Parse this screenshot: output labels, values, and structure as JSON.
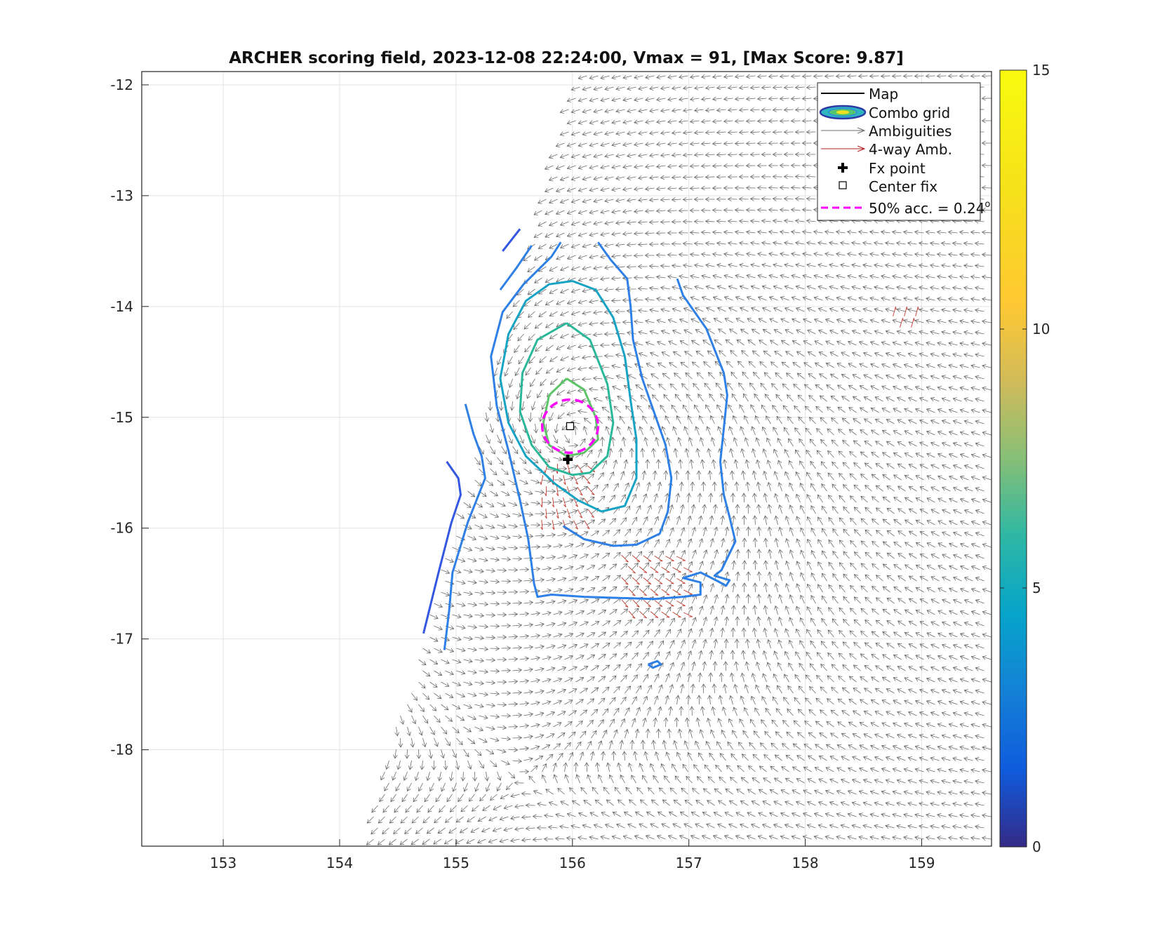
{
  "chart_data": {
    "type": "scatter",
    "title": "ARCHER scoring field, 2023-12-08 22:24:00, Vmax = 91, [Max Score: 9.87]",
    "xlim": [
      152.3,
      159.6
    ],
    "ylim": [
      -18.87,
      -11.88
    ],
    "xticks": [
      153,
      154,
      155,
      156,
      157,
      158,
      159
    ],
    "yticks": [
      -12,
      -13,
      -14,
      -15,
      -16,
      -17,
      -18
    ],
    "grid": true,
    "colorbar": {
      "min": 0,
      "max": 15,
      "ticks": [
        0,
        5,
        10,
        15
      ],
      "colormap": "parula"
    },
    "legend": {
      "placement": "top-right",
      "entries": [
        {
          "label": "Map",
          "style": "line",
          "color": "#000000"
        },
        {
          "label": "Combo grid",
          "style": "contour-ellipse"
        },
        {
          "label": "Ambiguities",
          "style": "arrow",
          "color": "#6e6e6e"
        },
        {
          "label": "4-way Amb.",
          "style": "arrow",
          "color": "#b22222"
        },
        {
          "label": "Fx point",
          "style": "plus-marker",
          "color": "#000000"
        },
        {
          "label": "Center fix",
          "style": "square-marker",
          "color": "#000000"
        },
        {
          "label": "50% acc. = 0.24",
          "superscript": "o",
          "style": "dashed",
          "color": "#ff00ff"
        }
      ]
    },
    "points": {
      "center_fix": {
        "x": 155.98,
        "y": -15.08
      },
      "fx_point": {
        "x": 155.96,
        "y": -15.38
      }
    },
    "accuracy_circle": {
      "x": 155.98,
      "y": -15.08,
      "radius_deg": 0.24,
      "color": "#ff00ff"
    },
    "swath": {
      "polygon": [
        [
          156.05,
          -11.88
        ],
        [
          159.6,
          -11.88
        ],
        [
          159.6,
          -18.87
        ],
        [
          154.2,
          -18.87
        ]
      ]
    },
    "vortex": {
      "x": 156.0,
      "y": -15.15
    },
    "contours": [
      {
        "level": 4.0,
        "color": "#3357e0",
        "segments": [
          [
            [
              155.4,
              -13.5
            ],
            [
              155.55,
              -13.3
            ]
          ],
          [
            [
              154.72,
              -16.95
            ],
            [
              154.85,
              -16.4
            ],
            [
              154.96,
              -15.95
            ],
            [
              155.04,
              -15.7
            ],
            [
              155.02,
              -15.55
            ],
            [
              154.92,
              -15.4
            ]
          ]
        ]
      },
      {
        "level": 5.0,
        "color": "#2f80e6",
        "segments": [
          [
            [
              155.65,
              -13.45
            ],
            [
              155.52,
              -13.65
            ],
            [
              155.38,
              -13.85
            ]
          ],
          [
            [
              155.08,
              -14.88
            ],
            [
              155.15,
              -15.15
            ],
            [
              155.22,
              -15.35
            ],
            [
              155.25,
              -15.55
            ],
            [
              155.1,
              -15.95
            ],
            [
              154.97,
              -16.4
            ],
            [
              154.94,
              -16.75
            ],
            [
              154.9,
              -17.1
            ]
          ],
          [
            [
              155.9,
              -13.42
            ],
            [
              155.82,
              -13.55
            ],
            [
              155.58,
              -13.8
            ],
            [
              155.4,
              -14.05
            ],
            [
              155.3,
              -14.45
            ],
            [
              155.35,
              -14.9
            ],
            [
              155.45,
              -15.3
            ],
            [
              155.55,
              -15.75
            ],
            [
              155.62,
              -16.1
            ],
            [
              155.67,
              -16.5
            ],
            [
              155.7,
              -16.62
            ],
            [
              155.82,
              -16.6
            ],
            [
              156.1,
              -16.62
            ],
            [
              156.4,
              -16.63
            ],
            [
              156.7,
              -16.64
            ],
            [
              156.95,
              -16.62
            ],
            [
              157.1,
              -16.6
            ],
            [
              157.1,
              -16.49
            ],
            [
              156.95,
              -16.45
            ],
            [
              157.1,
              -16.4
            ],
            [
              157.25,
              -16.48
            ],
            [
              157.32,
              -16.52
            ],
            [
              157.35,
              -16.47
            ],
            [
              157.22,
              -16.43
            ],
            [
              157.28,
              -16.38
            ],
            [
              157.4,
              -16.12
            ],
            [
              157.35,
              -15.9
            ],
            [
              157.3,
              -15.7
            ],
            [
              157.27,
              -15.4
            ],
            [
              157.3,
              -15.1
            ],
            [
              157.33,
              -14.8
            ],
            [
              157.3,
              -14.6
            ],
            [
              157.15,
              -14.2
            ],
            [
              156.95,
              -13.9
            ],
            [
              156.9,
              -13.75
            ]
          ],
          [
            [
              156.65,
              -17.23
            ],
            [
              156.73,
              -17.2
            ],
            [
              156.76,
              -17.23
            ],
            [
              156.69,
              -17.26
            ],
            [
              156.65,
              -17.23
            ]
          ],
          [
            [
              156.22,
              -13.42
            ],
            [
              156.33,
              -13.58
            ],
            [
              156.47,
              -13.75
            ],
            [
              156.5,
              -14.0
            ],
            [
              156.52,
              -14.3
            ],
            [
              156.6,
              -14.65
            ],
            [
              156.7,
              -14.95
            ],
            [
              156.8,
              -15.25
            ],
            [
              156.85,
              -15.55
            ],
            [
              156.82,
              -15.85
            ],
            [
              156.75,
              -16.05
            ],
            [
              156.55,
              -16.15
            ],
            [
              156.35,
              -16.16
            ],
            [
              156.1,
              -16.1
            ],
            [
              155.92,
              -15.98
            ]
          ]
        ]
      },
      {
        "level": 6.5,
        "color": "#17a3c4",
        "segments": [
          [
            [
              156.0,
              -13.77
            ],
            [
              156.2,
              -13.85
            ],
            [
              156.35,
              -14.1
            ],
            [
              156.45,
              -14.45
            ],
            [
              156.5,
              -14.85
            ],
            [
              156.55,
              -15.2
            ],
            [
              156.55,
              -15.55
            ],
            [
              156.45,
              -15.8
            ],
            [
              156.25,
              -15.85
            ],
            [
              156.05,
              -15.75
            ],
            [
              155.85,
              -15.6
            ],
            [
              155.6,
              -15.35
            ],
            [
              155.45,
              -15.05
            ],
            [
              155.38,
              -14.65
            ],
            [
              155.45,
              -14.25
            ],
            [
              155.6,
              -13.95
            ],
            [
              155.8,
              -13.8
            ],
            [
              156.0,
              -13.77
            ]
          ]
        ]
      },
      {
        "level": 8.0,
        "color": "#2bb89a",
        "segments": [
          [
            [
              155.95,
              -14.15
            ],
            [
              156.15,
              -14.3
            ],
            [
              156.3,
              -14.7
            ],
            [
              156.35,
              -15.05
            ],
            [
              156.3,
              -15.35
            ],
            [
              156.15,
              -15.5
            ],
            [
              156.0,
              -15.52
            ],
            [
              155.8,
              -15.45
            ],
            [
              155.65,
              -15.25
            ],
            [
              155.55,
              -14.95
            ],
            [
              155.57,
              -14.6
            ],
            [
              155.7,
              -14.3
            ],
            [
              155.95,
              -14.15
            ]
          ]
        ]
      },
      {
        "level": 9.2,
        "color": "#5dc568",
        "segments": [
          [
            [
              155.95,
              -14.65
            ],
            [
              156.1,
              -14.75
            ],
            [
              156.2,
              -15.0
            ],
            [
              156.22,
              -15.2
            ],
            [
              156.1,
              -15.32
            ],
            [
              155.95,
              -15.35
            ],
            [
              155.8,
              -15.25
            ],
            [
              155.75,
              -15.05
            ],
            [
              155.8,
              -14.8
            ],
            [
              155.95,
              -14.65
            ]
          ]
        ]
      }
    ],
    "four_way_regions": [
      [
        [
          155.7,
          -15.4
        ],
        [
          156.2,
          -16.05
        ]
      ],
      [
        [
          156.45,
          -16.25
        ],
        [
          157.0,
          -16.85
        ]
      ],
      [
        [
          158.75,
          -14.0
        ],
        [
          159.0,
          -14.15
        ]
      ]
    ]
  }
}
